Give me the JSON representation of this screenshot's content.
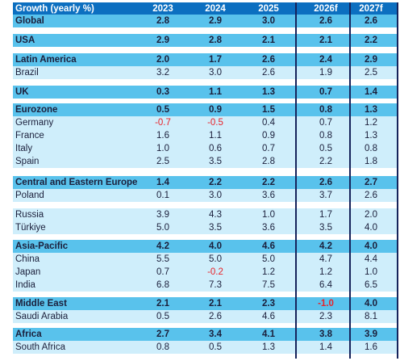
{
  "header": {
    "label": "Growth (yearly %)",
    "years": [
      "2023",
      "2024",
      "2025",
      "2026f",
      "2027f"
    ]
  },
  "rows": [
    {
      "label": "Global",
      "values": [
        "2.8",
        "2.9",
        "3.0",
        "2.6",
        "2.6"
      ],
      "style": "bold dark"
    },
    {
      "label": "USA",
      "values": [
        "2.9",
        "2.8",
        "2.1",
        "2.1",
        "2.2"
      ],
      "style": "bold dark"
    },
    {
      "label": "Latin America",
      "values": [
        "2.0",
        "1.7",
        "2.6",
        "2.4",
        "2.9"
      ],
      "style": "bold dark"
    },
    {
      "label": "Brazil",
      "values": [
        "3.2",
        "3.0",
        "2.6",
        "1.9",
        "2.5"
      ],
      "style": "light"
    },
    {
      "label": "UK",
      "values": [
        "0.3",
        "1.1",
        "1.3",
        "0.7",
        "1.4"
      ],
      "style": "bold dark"
    },
    {
      "label": "Eurozone",
      "values": [
        "0.5",
        "0.9",
        "1.5",
        "0.8",
        "1.3"
      ],
      "style": "bold dark"
    },
    {
      "label": "Germany",
      "values": [
        "-0.7",
        "-0.5",
        "0.4",
        "0.7",
        "1.2"
      ],
      "style": "light"
    },
    {
      "label": "France",
      "values": [
        "1.6",
        "1.1",
        "0.9",
        "0.8",
        "1.3"
      ],
      "style": "light"
    },
    {
      "label": "Italy",
      "values": [
        "1.0",
        "0.6",
        "0.7",
        "0.5",
        "0.8"
      ],
      "style": "light"
    },
    {
      "label": "Spain",
      "values": [
        "2.5",
        "3.5",
        "2.8",
        "2.2",
        "1.8"
      ],
      "style": "light"
    },
    {
      "label": "Central and Eastern Europe",
      "values": [
        "1.4",
        "2.2",
        "2.2",
        "2.6",
        "2.7"
      ],
      "style": "bold dark"
    },
    {
      "label": "Poland",
      "values": [
        "0.1",
        "3.0",
        "3.6",
        "3.7",
        "2.6"
      ],
      "style": "light"
    },
    {
      "label": "Russia",
      "values": [
        "3.9",
        "4.3",
        "1.0",
        "1.7",
        "2.0"
      ],
      "style": "light"
    },
    {
      "label": "Türkiye",
      "values": [
        "5.0",
        "3.5",
        "3.6",
        "3.5",
        "4.0"
      ],
      "style": "light"
    },
    {
      "label": "Asia-Pacific",
      "values": [
        "4.2",
        "4.0",
        "4.6",
        "4.2",
        "4.0"
      ],
      "style": "bold dark"
    },
    {
      "label": "China",
      "values": [
        "5.5",
        "5.0",
        "5.0",
        "4.7",
        "4.4"
      ],
      "style": "light"
    },
    {
      "label": "Japan",
      "values": [
        "0.7",
        "-0.2",
        "1.2",
        "1.2",
        "1.0"
      ],
      "style": "light"
    },
    {
      "label": "India",
      "values": [
        "6.8",
        "7.3",
        "7.5",
        "6.4",
        "6.5"
      ],
      "style": "light"
    },
    {
      "label": "Middle East",
      "values": [
        "2.1",
        "2.1",
        "2.3",
        "-1.0",
        "4.0"
      ],
      "style": "bold dark"
    },
    {
      "label": "Saudi Arabia",
      "values": [
        "0.5",
        "2.6",
        "4.6",
        "2.3",
        "8.1"
      ],
      "style": "light"
    },
    {
      "label": "Africa",
      "values": [
        "2.7",
        "3.4",
        "4.1",
        "3.8",
        "3.9"
      ],
      "style": "bold dark"
    },
    {
      "label": "South Africa",
      "values": [
        "0.8",
        "0.5",
        "1.3",
        "1.4",
        "1.6"
      ],
      "style": "light"
    }
  ],
  "colors": {
    "header_bg": "#0c6fc0",
    "group_bg": "#59c2ec",
    "country_bg": "#cfeefb",
    "text": "#1b1f3b",
    "negative": "#e8232a",
    "divider": "#16235b"
  }
}
